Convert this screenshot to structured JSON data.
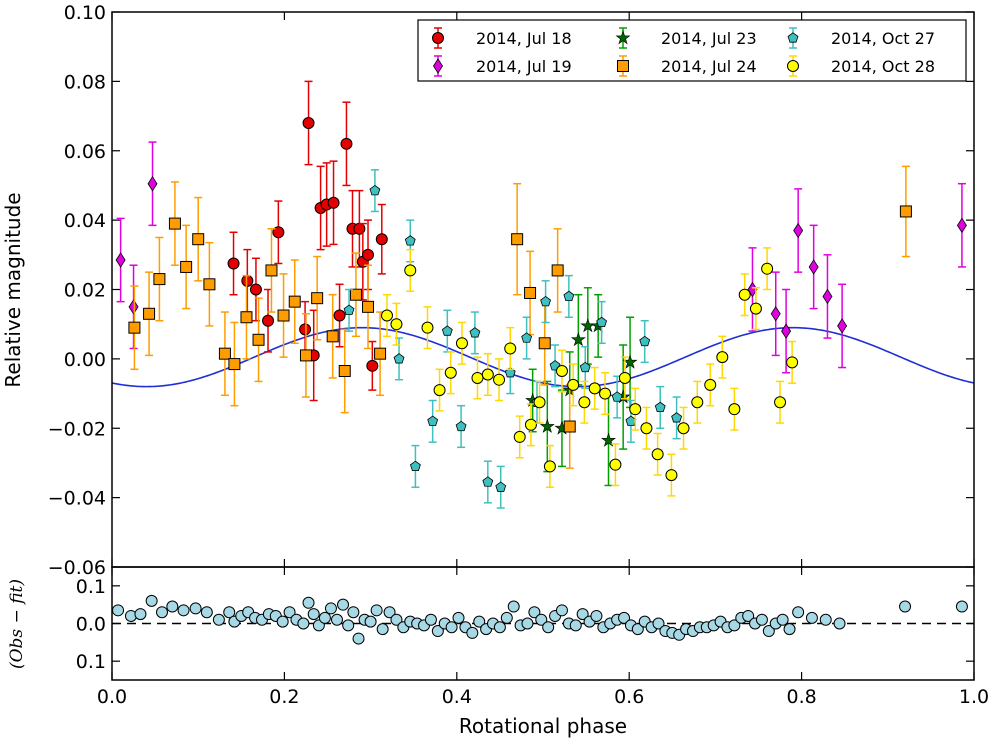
{
  "chart_data": [
    {
      "type": "scatter",
      "panel": "main",
      "title": "",
      "xlabel": "",
      "ylabel": "Relative magnitude",
      "xlim": [
        0.0,
        1.0
      ],
      "ylim": [
        -0.06,
        0.1
      ],
      "yticks": [
        "0.10",
        "0.08",
        "0.06",
        "0.04",
        "0.02",
        "0.00",
        "−0.02",
        "−0.04",
        "−0.06"
      ],
      "ytick_values": [
        0.1,
        0.08,
        0.06,
        0.04,
        0.02,
        0.0,
        -0.02,
        -0.04,
        -0.06
      ],
      "grid": false,
      "legend": "top-right",
      "fit_curve": {
        "type": "line",
        "color": "#1f2fd6",
        "model": "sinusoid",
        "mean": 0.0005,
        "amplitude": 0.0085,
        "peak_phases": [
          0.29,
          0.79
        ],
        "trough_phases": [
          0.04,
          0.54
        ]
      },
      "series": [
        {
          "name": "2014, Jul 18",
          "marker": "circle",
          "color": "#e30000",
          "err_color": "#e30000",
          "x": [
            0.141,
            0.157,
            0.167,
            0.181,
            0.193,
            0.224,
            0.228,
            0.234,
            0.242,
            0.249,
            0.257,
            0.264,
            0.272,
            0.279,
            0.287,
            0.291,
            0.297,
            0.302,
            0.313
          ],
          "y": [
            0.0275,
            0.0225,
            0.02,
            0.011,
            0.0365,
            0.0085,
            0.068,
            0.001,
            0.0435,
            0.0445,
            0.045,
            0.0125,
            0.062,
            0.0375,
            0.0375,
            0.028,
            0.03,
            -0.002,
            0.0345
          ],
          "err": [
            0.009,
            0.009,
            0.009,
            0.009,
            0.009,
            0.008,
            0.012,
            0.013,
            0.012,
            0.012,
            0.012,
            0.009,
            0.012,
            0.011,
            0.011,
            0.011,
            0.01,
            0.007,
            0.01
          ]
        },
        {
          "name": "2014, Jul 19",
          "marker": "diamond",
          "color": "#e000e0",
          "err_color": "#e000e0",
          "x": [
            0.01,
            0.025,
            0.047,
            0.743,
            0.77,
            0.782,
            0.796,
            0.814,
            0.83,
            0.847,
            0.986
          ],
          "y": [
            0.0285,
            0.015,
            0.0505,
            0.02,
            0.013,
            0.008,
            0.037,
            0.0265,
            0.018,
            0.0095,
            0.0385
          ]
        },
        {
          "name": "2014, Jul 23",
          "marker": "star",
          "color": "#006400",
          "err_color": "#00a000",
          "x": [
            0.488,
            0.505,
            0.522,
            0.531,
            0.541,
            0.552,
            0.564,
            0.576,
            0.593,
            0.601
          ],
          "y": [
            -0.012,
            -0.0195,
            -0.02,
            -0.009,
            0.0055,
            0.0095,
            0.0095,
            -0.0235,
            -0.011,
            -0.001
          ],
          "err": [
            0.009,
            0.013,
            0.011,
            0.011,
            0.013,
            0.011,
            0.009,
            0.013,
            0.015,
            0.013
          ]
        },
        {
          "name": "2014, Jul 24",
          "marker": "square",
          "color": "#ff9d00",
          "err_color": "#ff9d00",
          "x": [
            0.026,
            0.043,
            0.055,
            0.073,
            0.086,
            0.1,
            0.113,
            0.131,
            0.142,
            0.156,
            0.17,
            0.185,
            0.199,
            0.212,
            0.225,
            0.238,
            0.256,
            0.27,
            0.283,
            0.297,
            0.311,
            0.47,
            0.485,
            0.502,
            0.517,
            0.531,
            0.921
          ],
          "y": [
            0.009,
            0.013,
            0.023,
            0.039,
            0.0265,
            0.0345,
            0.0215,
            0.0015,
            -0.0015,
            0.012,
            0.0055,
            0.0255,
            0.0125,
            0.0165,
            0.001,
            0.0175,
            0.0065,
            -0.0035,
            0.0185,
            0.015,
            0.0015,
            0.0345,
            0.019,
            0.0045,
            0.0255,
            -0.0195,
            0.0425
          ],
          "err": [
            0.012,
            0.012,
            0.012,
            0.012,
            0.012,
            0.012,
            0.012,
            0.012,
            0.012,
            0.012,
            0.012,
            0.012,
            0.012,
            0.012,
            0.012,
            0.012,
            0.012,
            0.012,
            0.012,
            0.012,
            0.012,
            0.016,
            0.012,
            0.012,
            0.012,
            0.012,
            0.013
          ]
        },
        {
          "name": "2014, Oct 27",
          "marker": "pentagon",
          "color": "#3fc0c0",
          "err_color": "#3fc0c0",
          "x": [
            0.275,
            0.305,
            0.333,
            0.346,
            0.352,
            0.372,
            0.389,
            0.405,
            0.421,
            0.436,
            0.451,
            0.462,
            0.481,
            0.493,
            0.503,
            0.514,
            0.53,
            0.549,
            0.568,
            0.586,
            0.602,
            0.618,
            0.636,
            0.655
          ],
          "y": [
            0.014,
            0.0485,
            0.0,
            0.034,
            -0.031,
            -0.018,
            0.008,
            -0.0195,
            0.0075,
            -0.0355,
            -0.037,
            -0.004,
            0.006,
            -0.0125,
            0.0165,
            -0.002,
            0.018,
            -0.0025,
            0.0105,
            -0.011,
            -0.018,
            0.005,
            -0.014,
            -0.017
          ],
          "err": [
            0.006,
            0.006,
            0.006,
            0.006,
            0.006,
            0.006,
            0.006,
            0.006,
            0.006,
            0.006,
            0.006,
            0.006,
            0.006,
            0.006,
            0.006,
            0.006,
            0.006,
            0.006,
            0.006,
            0.006,
            0.006,
            0.006,
            0.006,
            0.006
          ]
        },
        {
          "name": "2014, Oct 28",
          "marker": "circle",
          "color": "#ffff00",
          "err_color": "#ffd800",
          "x": [
            0.319,
            0.33,
            0.346,
            0.366,
            0.38,
            0.393,
            0.406,
            0.424,
            0.436,
            0.449,
            0.462,
            0.473,
            0.486,
            0.496,
            0.508,
            0.522,
            0.535,
            0.548,
            0.56,
            0.572,
            0.584,
            0.595,
            0.607,
            0.62,
            0.633,
            0.649,
            0.663,
            0.679,
            0.694,
            0.708,
            0.722,
            0.734,
            0.747,
            0.76,
            0.775,
            0.789
          ],
          "y": [
            0.0125,
            0.01,
            0.0255,
            0.009,
            -0.009,
            -0.004,
            0.0045,
            -0.0055,
            -0.0045,
            -0.006,
            0.003,
            -0.0225,
            -0.019,
            -0.0125,
            -0.031,
            -0.0035,
            -0.0075,
            -0.0125,
            -0.0085,
            -0.01,
            -0.0305,
            -0.0055,
            -0.0145,
            -0.02,
            -0.0275,
            -0.0335,
            -0.02,
            -0.0125,
            -0.0075,
            0.0005,
            -0.0145,
            0.0185,
            0.0145,
            0.026,
            -0.0125,
            -0.001
          ],
          "err": [
            0.006,
            0.006,
            0.006,
            0.006,
            0.006,
            0.006,
            0.006,
            0.006,
            0.006,
            0.006,
            0.006,
            0.006,
            0.006,
            0.006,
            0.006,
            0.006,
            0.006,
            0.006,
            0.006,
            0.006,
            0.006,
            0.006,
            0.006,
            0.006,
            0.006,
            0.006,
            0.006,
            0.006,
            0.006,
            0.006,
            0.006,
            0.006,
            0.006,
            0.006,
            0.006,
            0.006
          ]
        }
      ]
    },
    {
      "type": "scatter",
      "panel": "residuals",
      "title": "",
      "xlabel": "Rotational phase",
      "ylabel": "(Obs − fit)",
      "xlim": [
        0.0,
        1.0
      ],
      "ylim": [
        -0.15,
        0.15
      ],
      "yticks": [
        "0.1",
        "0.0",
        "0.1"
      ],
      "ytick_values": [
        0.1,
        0.0,
        -0.1
      ],
      "xticks": [
        "0.0",
        "0.2",
        "0.4",
        "0.6",
        "0.8",
        "1.0"
      ],
      "xtick_values": [
        0.0,
        0.2,
        0.4,
        0.6,
        0.8,
        1.0
      ],
      "grid": false,
      "zero_line": "dashed",
      "series": [
        {
          "marker": "circle",
          "color": "#a6d8e6",
          "x": [
            0.007,
            0.022,
            0.033,
            0.046,
            0.058,
            0.07,
            0.083,
            0.097,
            0.11,
            0.124,
            0.136,
            0.142,
            0.15,
            0.158,
            0.166,
            0.174,
            0.182,
            0.19,
            0.198,
            0.206,
            0.214,
            0.222,
            0.228,
            0.234,
            0.24,
            0.247,
            0.254,
            0.261,
            0.268,
            0.274,
            0.28,
            0.286,
            0.293,
            0.3,
            0.307,
            0.314,
            0.322,
            0.33,
            0.338,
            0.346,
            0.354,
            0.362,
            0.37,
            0.378,
            0.386,
            0.394,
            0.402,
            0.41,
            0.418,
            0.426,
            0.434,
            0.442,
            0.45,
            0.458,
            0.466,
            0.474,
            0.482,
            0.49,
            0.498,
            0.506,
            0.514,
            0.522,
            0.53,
            0.538,
            0.546,
            0.554,
            0.562,
            0.57,
            0.578,
            0.586,
            0.594,
            0.602,
            0.61,
            0.618,
            0.626,
            0.634,
            0.642,
            0.65,
            0.658,
            0.666,
            0.674,
            0.682,
            0.69,
            0.698,
            0.706,
            0.714,
            0.722,
            0.73,
            0.738,
            0.746,
            0.754,
            0.762,
            0.77,
            0.778,
            0.786,
            0.796,
            0.812,
            0.828,
            0.844,
            0.92,
            0.986
          ],
          "y": [
            0.035,
            0.02,
            0.025,
            0.06,
            0.03,
            0.045,
            0.035,
            0.04,
            0.03,
            0.01,
            0.03,
            0.005,
            0.02,
            0.03,
            0.015,
            0.01,
            0.025,
            0.02,
            0.005,
            0.03,
            0.01,
            0.0,
            0.055,
            0.025,
            -0.005,
            0.015,
            0.04,
            0.01,
            0.05,
            -0.005,
            0.03,
            -0.04,
            0.01,
            0.005,
            0.035,
            -0.015,
            0.03,
            0.01,
            -0.01,
            0.005,
            0.0,
            -0.005,
            0.01,
            -0.02,
            0.0,
            -0.01,
            0.015,
            -0.01,
            -0.025,
            0.005,
            -0.015,
            0.0,
            -0.01,
            0.015,
            0.045,
            -0.005,
            0.0,
            0.03,
            0.01,
            -0.01,
            0.02,
            0.035,
            0.0,
            -0.005,
            0.025,
            0.005,
            0.02,
            -0.01,
            0.0,
            0.01,
            0.015,
            -0.005,
            -0.015,
            0.005,
            -0.01,
            0.0,
            -0.02,
            -0.025,
            -0.03,
            -0.015,
            -0.02,
            -0.01,
            -0.01,
            -0.005,
            0.005,
            -0.01,
            -0.005,
            0.015,
            0.02,
            0.0,
            0.01,
            -0.02,
            0.0,
            0.01,
            -0.015,
            0.03,
            0.015,
            0.01,
            0.0,
            0.045,
            0.045
          ]
        }
      ]
    }
  ]
}
